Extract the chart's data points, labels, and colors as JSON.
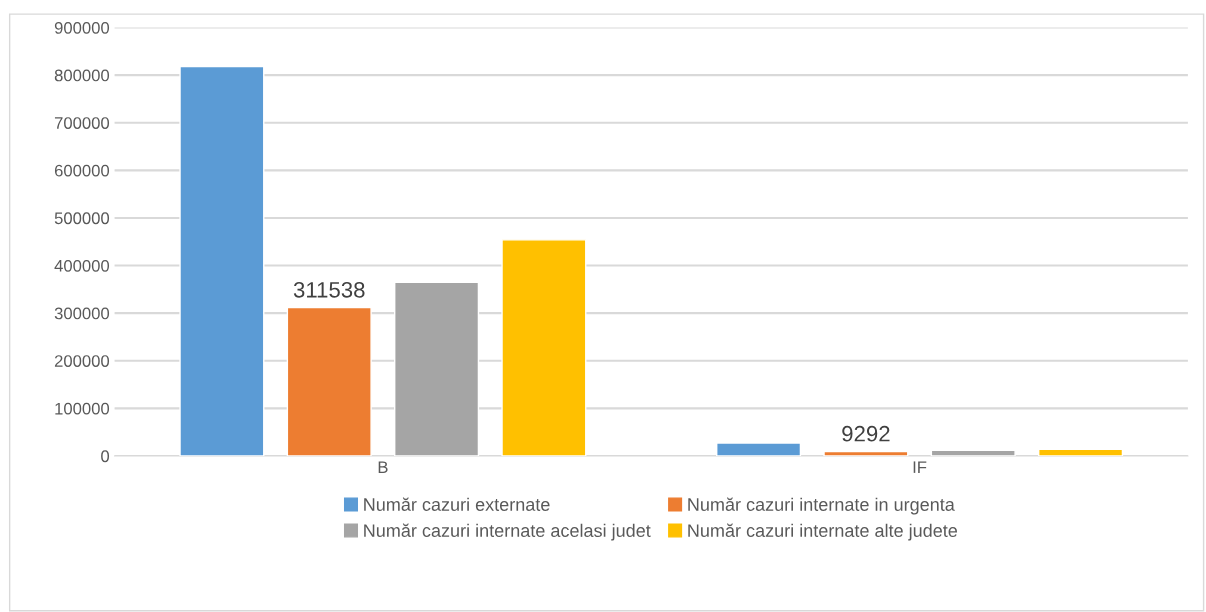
{
  "chart_data": {
    "type": "bar",
    "categories": [
      "B",
      "IF"
    ],
    "series": [
      {
        "name": "Număr cazuri externate",
        "color": "#5b9bd5",
        "values": [
          818000,
          27000
        ]
      },
      {
        "name": "Număr cazuri internate in urgenta",
        "color": "#ed7d31",
        "values": [
          311538,
          9292
        ],
        "value_labels": [
          "311538",
          "9292"
        ]
      },
      {
        "name": "Număr cazuri internate acelasi judet",
        "color": "#a5a5a5",
        "values": [
          365000,
          12000
        ]
      },
      {
        "name": "Număr cazuri internate alte judete",
        "color": "#ffc000",
        "values": [
          454000,
          14000
        ]
      }
    ],
    "ylim": [
      0,
      900000
    ],
    "yticks": [
      0,
      100000,
      200000,
      300000,
      400000,
      500000,
      600000,
      700000,
      800000,
      900000
    ],
    "grid": "y",
    "legend": "bottom"
  }
}
